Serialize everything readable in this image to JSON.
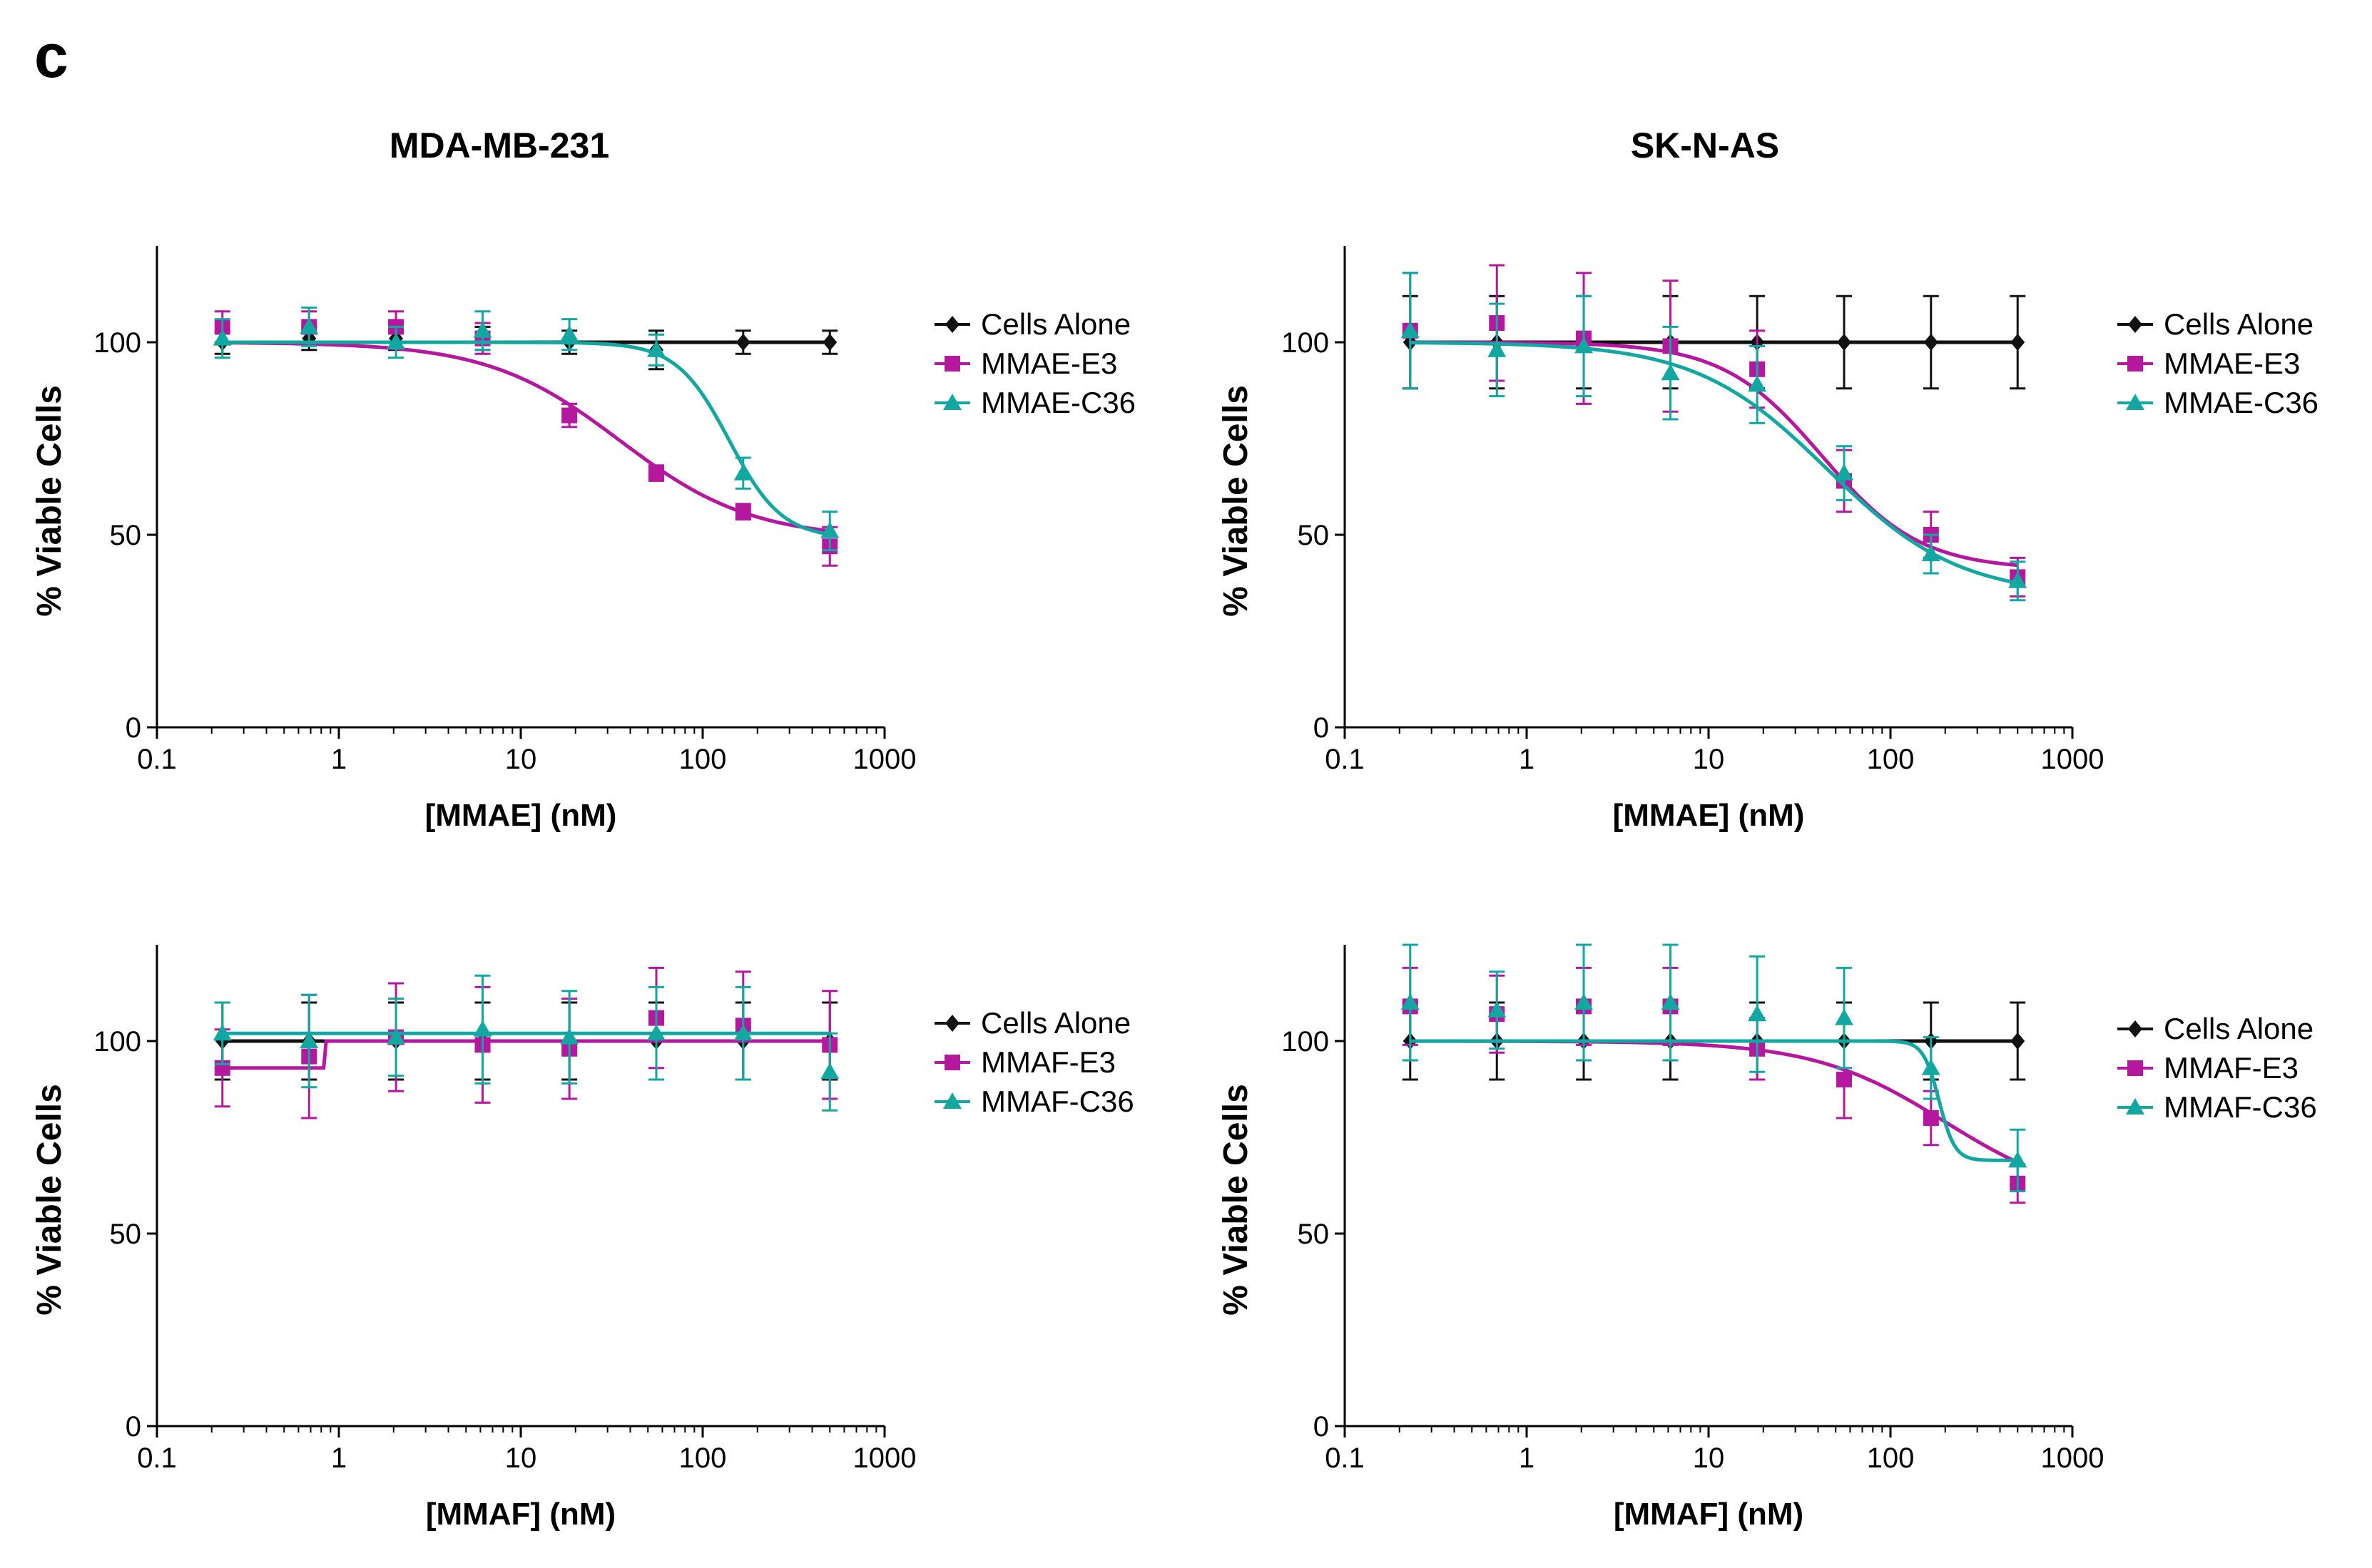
{
  "panel_letter": "c",
  "column_titles": [
    "MDA-MB-231",
    "SK-N-AS"
  ],
  "colors": {
    "cells_alone": "#111111",
    "e3": "#b5179e",
    "c36": "#12a7a1"
  },
  "chart_data": [
    {
      "id": "mmae-mda",
      "type": "line",
      "title": "MDA-MB-231",
      "xlabel": "[MMAE] (nM)",
      "ylabel": "% Viable Cells",
      "xscale": "log",
      "xlim": [
        0.1,
        1000
      ],
      "ylim": [
        0,
        125
      ],
      "xticks": [
        "0.1",
        "1",
        "10",
        "100",
        "1000"
      ],
      "yticks": [
        "0",
        "50",
        "100"
      ],
      "legend": "right",
      "x": [
        0.229,
        0.686,
        2.06,
        6.17,
        18.5,
        55.6,
        167,
        500
      ],
      "series": [
        {
          "name": "Cells Alone",
          "color_key": "cells_alone",
          "marker": "diamond",
          "values": [
            100,
            101,
            101,
            101,
            100,
            98,
            100,
            100
          ],
          "errors": [
            3,
            3,
            3,
            3,
            3,
            5,
            3,
            3
          ],
          "fit": {
            "kind": "flat",
            "top": 100
          }
        },
        {
          "name": "MMAE-E3",
          "color_key": "e3",
          "marker": "square",
          "values": [
            104,
            104,
            104,
            101,
            81,
            66,
            56,
            47
          ],
          "errors": [
            4,
            4,
            4,
            4,
            3,
            2,
            2,
            5
          ],
          "fit": {
            "kind": "sigmoid",
            "top": 100,
            "bottom": 49,
            "ec50": 35,
            "hill": 1.2
          }
        },
        {
          "name": "MMAE-C36",
          "color_key": "c36",
          "marker": "triangle",
          "values": [
            101,
            104,
            100,
            103,
            102,
            98,
            66,
            51
          ],
          "errors": [
            5,
            5,
            4,
            5,
            4,
            4,
            4,
            5
          ],
          "fit": {
            "kind": "sigmoid",
            "top": 100,
            "bottom": 49,
            "ec50": 140,
            "hill": 3
          }
        }
      ]
    },
    {
      "id": "mmae-sknas",
      "type": "line",
      "title": "SK-N-AS",
      "xlabel": "[MMAE] (nM)",
      "ylabel": "% Viable Cells",
      "xscale": "log",
      "xlim": [
        0.1,
        1000
      ],
      "ylim": [
        0,
        125
      ],
      "xticks": [
        "0.1",
        "1",
        "10",
        "100",
        "1000"
      ],
      "yticks": [
        "0",
        "50",
        "100"
      ],
      "legend": "right",
      "x": [
        0.229,
        0.686,
        2.06,
        6.17,
        18.5,
        55.6,
        167,
        500
      ],
      "series": [
        {
          "name": "Cells Alone",
          "color_key": "cells_alone",
          "marker": "diamond",
          "values": [
            100,
            100,
            100,
            100,
            100,
            100,
            100,
            100
          ],
          "errors": [
            12,
            12,
            12,
            12,
            12,
            12,
            12,
            12
          ],
          "fit": {
            "kind": "flat",
            "top": 100
          }
        },
        {
          "name": "MMAE-E3",
          "color_key": "e3",
          "marker": "square",
          "values": [
            103,
            105,
            101,
            99,
            93,
            64,
            50,
            39
          ],
          "errors": [
            15,
            15,
            17,
            17,
            10,
            8,
            6,
            5
          ],
          "fit": {
            "kind": "sigmoid",
            "top": 100,
            "bottom": 41,
            "ec50": 42,
            "hill": 1.6
          }
        },
        {
          "name": "MMAE-C36",
          "color_key": "c36",
          "marker": "triangle",
          "values": [
            103,
            98,
            99,
            92,
            89,
            66,
            45,
            38
          ],
          "errors": [
            15,
            12,
            13,
            12,
            10,
            7,
            5,
            5
          ],
          "fit": {
            "kind": "sigmoid",
            "top": 100,
            "bottom": 34,
            "ec50": 45,
            "hill": 1.2
          }
        }
      ]
    },
    {
      "id": "mmaf-mda",
      "type": "line",
      "title": "MDA-MB-231",
      "xlabel": "[MMAF] (nM)",
      "ylabel": "% Viable Cells",
      "xscale": "log",
      "xlim": [
        0.1,
        1000
      ],
      "ylim": [
        0,
        125
      ],
      "xticks": [
        "0.1",
        "1",
        "10",
        "100",
        "1000"
      ],
      "yticks": [
        "0",
        "50",
        "100"
      ],
      "legend": "right",
      "x": [
        0.229,
        0.686,
        2.06,
        6.17,
        18.5,
        55.6,
        167,
        500
      ],
      "series": [
        {
          "name": "Cells Alone",
          "color_key": "cells_alone",
          "marker": "diamond",
          "values": [
            100,
            100,
            100,
            100,
            100,
            100,
            100,
            100
          ],
          "errors": [
            10,
            10,
            10,
            10,
            10,
            10,
            10,
            10
          ],
          "fit": {
            "kind": "flat",
            "top": 100
          }
        },
        {
          "name": "MMAF-E3",
          "color_key": "e3",
          "marker": "square",
          "values": [
            93,
            96,
            101,
            99,
            98,
            106,
            104,
            99
          ],
          "errors": [
            10,
            16,
            14,
            15,
            13,
            13,
            14,
            14
          ],
          "fit": {
            "kind": "step",
            "before": 93,
            "after": 100,
            "at": 0.85
          }
        },
        {
          "name": "MMAF-C36",
          "color_key": "c36",
          "marker": "triangle",
          "values": [
            102,
            100,
            101,
            103,
            101,
            102,
            102,
            92
          ],
          "errors": [
            8,
            12,
            10,
            14,
            12,
            12,
            12,
            10
          ],
          "fit": {
            "kind": "flat",
            "top": 102
          }
        }
      ]
    },
    {
      "id": "mmaf-sknas",
      "type": "line",
      "title": "SK-N-AS",
      "xlabel": "[MMAF] (nM)",
      "ylabel": "% Viable Cells",
      "xscale": "log",
      "xlim": [
        0.1,
        1000
      ],
      "ylim": [
        0,
        125
      ],
      "xticks": [
        "0.1",
        "1",
        "10",
        "100",
        "1000"
      ],
      "yticks": [
        "0",
        "50",
        "100"
      ],
      "legend": "right",
      "x": [
        0.229,
        0.686,
        2.06,
        6.17,
        18.5,
        55.6,
        167,
        500
      ],
      "series": [
        {
          "name": "Cells Alone",
          "color_key": "cells_alone",
          "marker": "diamond",
          "values": [
            100,
            100,
            100,
            100,
            100,
            100,
            100,
            100
          ],
          "errors": [
            10,
            10,
            10,
            10,
            10,
            10,
            10,
            10
          ],
          "fit": {
            "kind": "flat",
            "top": 100
          }
        },
        {
          "name": "MMAF-E3",
          "color_key": "e3",
          "marker": "square",
          "values": [
            109,
            107,
            109,
            109,
            98,
            90,
            80,
            63
          ],
          "errors": [
            10,
            10,
            10,
            10,
            8,
            10,
            7,
            5
          ],
          "fit": {
            "kind": "sigmoid",
            "top": 100,
            "bottom": 58,
            "ec50": 200,
            "hill": 1.2
          }
        },
        {
          "name": "MMAF-C36",
          "color_key": "c36",
          "marker": "triangle",
          "values": [
            110,
            108,
            110,
            110,
            107,
            106,
            93,
            69
          ],
          "errors": [
            15,
            10,
            15,
            15,
            15,
            13,
            8,
            8
          ],
          "fit": {
            "kind": "sigmoid",
            "top": 100,
            "bottom": 69,
            "ec50": 185,
            "hill": 10
          }
        }
      ]
    }
  ]
}
